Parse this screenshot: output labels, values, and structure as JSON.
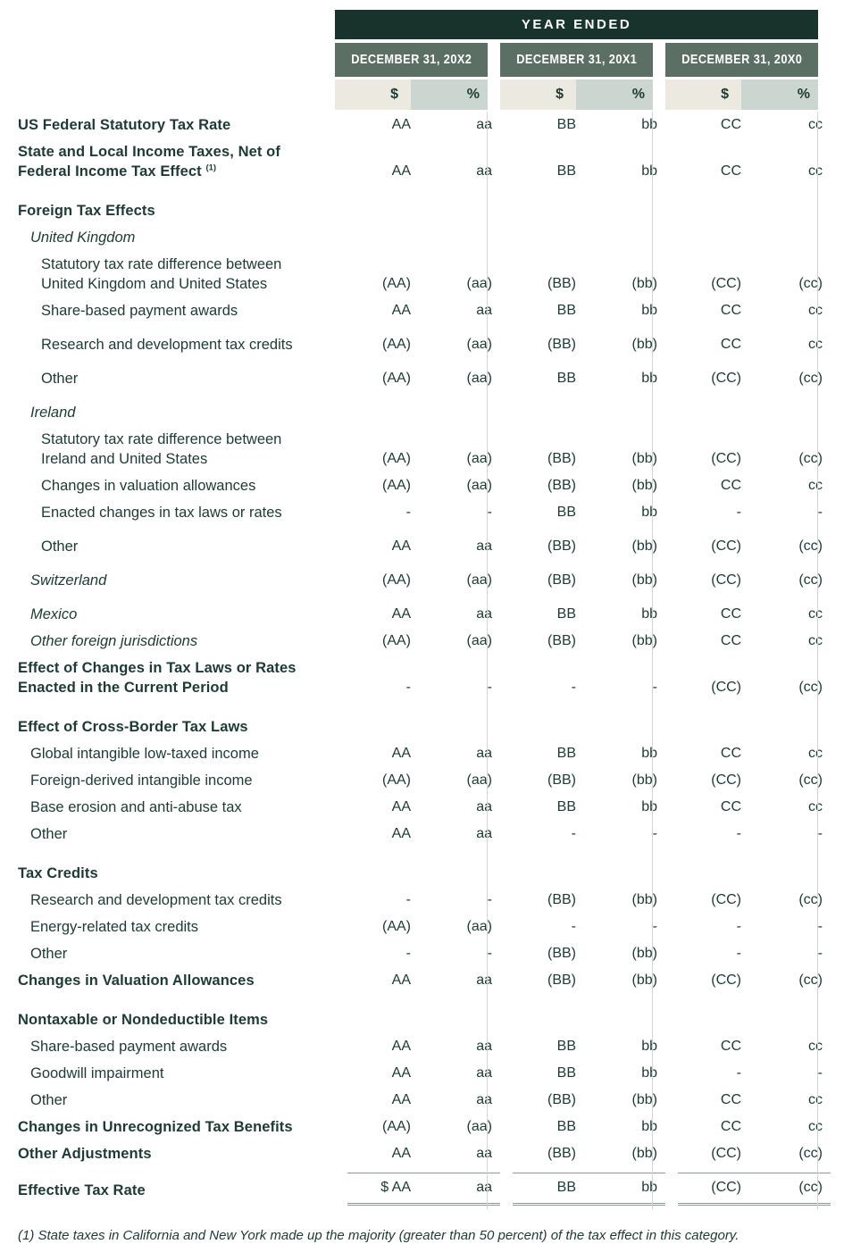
{
  "header": {
    "year_ended": "YEAR ENDED",
    "periods": [
      "DECEMBER 31, 20X2",
      "DECEMBER 31, 20X1",
      "DECEMBER 31, 20X0"
    ],
    "period_keys": [
      "20x2",
      "20x1",
      "20x0"
    ],
    "subcolumns": [
      "$",
      "%"
    ]
  },
  "colors": {
    "dark_header": "#17332c",
    "period_header": "#5c6f65",
    "dollar_column": "#ece9e0",
    "percent_column": "#ccd6d0",
    "text": "#1d3a34",
    "divider": "#d2d6d2",
    "total_rule": "#8e9a94"
  },
  "table": {
    "rows": [
      {
        "label": "US Federal Statutory Tax Rate",
        "style": "bold",
        "indent": 0,
        "values": [
          "AA",
          "aa",
          "BB",
          "bb",
          "CC",
          "cc"
        ]
      },
      {
        "label": "State and Local Income Taxes, Net of Federal Income Tax Effect",
        "sup": "(1)",
        "style": "bold",
        "indent": 0,
        "values": [
          "AA",
          "aa",
          "BB",
          "bb",
          "CC",
          "cc"
        ]
      },
      {
        "label": "Foreign Tax Effects",
        "style": "bold",
        "indent": 0,
        "gap": "section",
        "values": null
      },
      {
        "label": "United Kingdom",
        "style": "italic",
        "indent": 1,
        "values": null
      },
      {
        "label": "Statutory tax rate difference between United Kingdom and United States",
        "style": "plain",
        "indent": 2,
        "values": [
          "(AA)",
          "(aa)",
          "(BB)",
          "(bb)",
          "(CC)",
          "(cc)"
        ]
      },
      {
        "label": "Share-based payment awards",
        "style": "plain",
        "indent": 2,
        "values": [
          "AA",
          "aa",
          "BB",
          "bb",
          "CC",
          "cc"
        ]
      },
      {
        "label": "Research and development tax credits",
        "style": "plain",
        "indent": 2,
        "gap": "small",
        "values": [
          "(AA)",
          "(aa)",
          "(BB)",
          "(bb)",
          "CC",
          "cc"
        ]
      },
      {
        "label": "Other",
        "style": "plain",
        "indent": 2,
        "gap": "small",
        "values": [
          "(AA)",
          "(aa)",
          "BB",
          "bb",
          "(CC)",
          "(cc)"
        ]
      },
      {
        "label": "Ireland",
        "style": "italic",
        "indent": 1,
        "gap": "small",
        "values": null
      },
      {
        "label": "Statutory tax rate difference between Ireland and United States",
        "style": "plain",
        "indent": 2,
        "values": [
          "(AA)",
          "(aa)",
          "(BB)",
          "(bb)",
          "(CC)",
          "(cc)"
        ]
      },
      {
        "label": "Changes in valuation allowances",
        "style": "plain",
        "indent": 2,
        "values": [
          "(AA)",
          "(aa)",
          "(BB)",
          "(bb)",
          "CC",
          "cc"
        ]
      },
      {
        "label": "Enacted changes in tax laws or rates",
        "style": "plain",
        "indent": 2,
        "values": [
          "-",
          "-",
          "BB",
          "bb",
          "-",
          "-"
        ]
      },
      {
        "label": "Other",
        "style": "plain",
        "indent": 2,
        "gap": "small",
        "values": [
          "AA",
          "aa",
          "(BB)",
          "(bb)",
          "(CC)",
          "(cc)"
        ]
      },
      {
        "label": "Switzerland",
        "style": "italic",
        "indent": 1,
        "gap": "small",
        "values": [
          "(AA)",
          "(aa)",
          "(BB)",
          "(bb)",
          "(CC)",
          "(cc)"
        ]
      },
      {
        "label": "Mexico",
        "style": "italic",
        "indent": 1,
        "gap": "small",
        "values": [
          "AA",
          "aa",
          "BB",
          "bb",
          "CC",
          "cc"
        ]
      },
      {
        "label": "Other foreign jurisdictions",
        "style": "italic",
        "indent": 1,
        "values": [
          "(AA)",
          "(aa)",
          "(BB)",
          "(bb)",
          "CC",
          "cc"
        ]
      },
      {
        "label": "Effect of Changes in Tax Laws or Rates Enacted in the Current Period",
        "style": "bold",
        "indent": 0,
        "values": [
          "-",
          "-",
          "-",
          "-",
          "(CC)",
          "(cc)"
        ]
      },
      {
        "label": "Effect of Cross-Border Tax Laws",
        "style": "bold",
        "indent": 0,
        "gap": "section",
        "values": null
      },
      {
        "label": "Global intangible low-taxed income",
        "style": "plain",
        "indent": 1,
        "values": [
          "AA",
          "aa",
          "BB",
          "bb",
          "CC",
          "cc"
        ]
      },
      {
        "label": "Foreign-derived intangible income",
        "style": "plain",
        "indent": 1,
        "values": [
          "(AA)",
          "(aa)",
          "(BB)",
          "(bb)",
          "(CC)",
          "(cc)"
        ]
      },
      {
        "label": "Base erosion and anti-abuse tax",
        "style": "plain",
        "indent": 1,
        "values": [
          "AA",
          "aa",
          "BB",
          "bb",
          "CC",
          "cc"
        ]
      },
      {
        "label": "Other",
        "style": "plain",
        "indent": 1,
        "values": [
          "AA",
          "aa",
          "-",
          "-",
          "-",
          "-"
        ]
      },
      {
        "label": "Tax Credits",
        "style": "bold",
        "indent": 0,
        "gap": "section",
        "values": null
      },
      {
        "label": "Research and development tax credits",
        "style": "plain",
        "indent": 1,
        "values": [
          "-",
          "-",
          "(BB)",
          "(bb)",
          "(CC)",
          "(cc)"
        ]
      },
      {
        "label": "Energy-related tax credits",
        "style": "plain",
        "indent": 1,
        "values": [
          "(AA)",
          "(aa)",
          "-",
          "-",
          "-",
          "-"
        ]
      },
      {
        "label": "Other",
        "style": "plain",
        "indent": 1,
        "values": [
          "-",
          "-",
          "(BB)",
          "(bb)",
          "-",
          "-"
        ]
      },
      {
        "label": "Changes in Valuation Allowances",
        "style": "bold",
        "indent": 0,
        "values": [
          "AA",
          "aa",
          "(BB)",
          "(bb)",
          "(CC)",
          "(cc)"
        ]
      },
      {
        "label": "Nontaxable or Nondeductible Items",
        "style": "bold",
        "indent": 0,
        "gap": "section",
        "values": null
      },
      {
        "label": "Share-based payment awards",
        "style": "plain",
        "indent": 1,
        "values": [
          "AA",
          "aa",
          "BB",
          "bb",
          "CC",
          "cc"
        ]
      },
      {
        "label": "Goodwill impairment",
        "style": "plain",
        "indent": 1,
        "values": [
          "AA",
          "aa",
          "BB",
          "bb",
          "-",
          "-"
        ]
      },
      {
        "label": "Other",
        "style": "plain",
        "indent": 1,
        "values": [
          "AA",
          "aa",
          "(BB)",
          "(bb)",
          "CC",
          "cc"
        ]
      },
      {
        "label": "Changes in Unrecognized Tax Benefits",
        "style": "bold",
        "indent": 0,
        "values": [
          "(AA)",
          "(aa)",
          "BB",
          "bb",
          "CC",
          "cc"
        ]
      },
      {
        "label": "Other Adjustments",
        "style": "bold",
        "indent": 0,
        "values": [
          "AA",
          "aa",
          "(BB)",
          "(bb)",
          "(CC)",
          "(cc)"
        ]
      },
      {
        "label": "Effective Tax Rate",
        "style": "bold",
        "indent": 0,
        "total": true,
        "values": [
          "$ AA",
          "aa",
          "BB",
          "bb",
          "(CC)",
          "(cc)"
        ]
      }
    ]
  },
  "footnote": "(1) State taxes in California and New York made up the majority (greater than 50 percent) of the tax effect in this category."
}
